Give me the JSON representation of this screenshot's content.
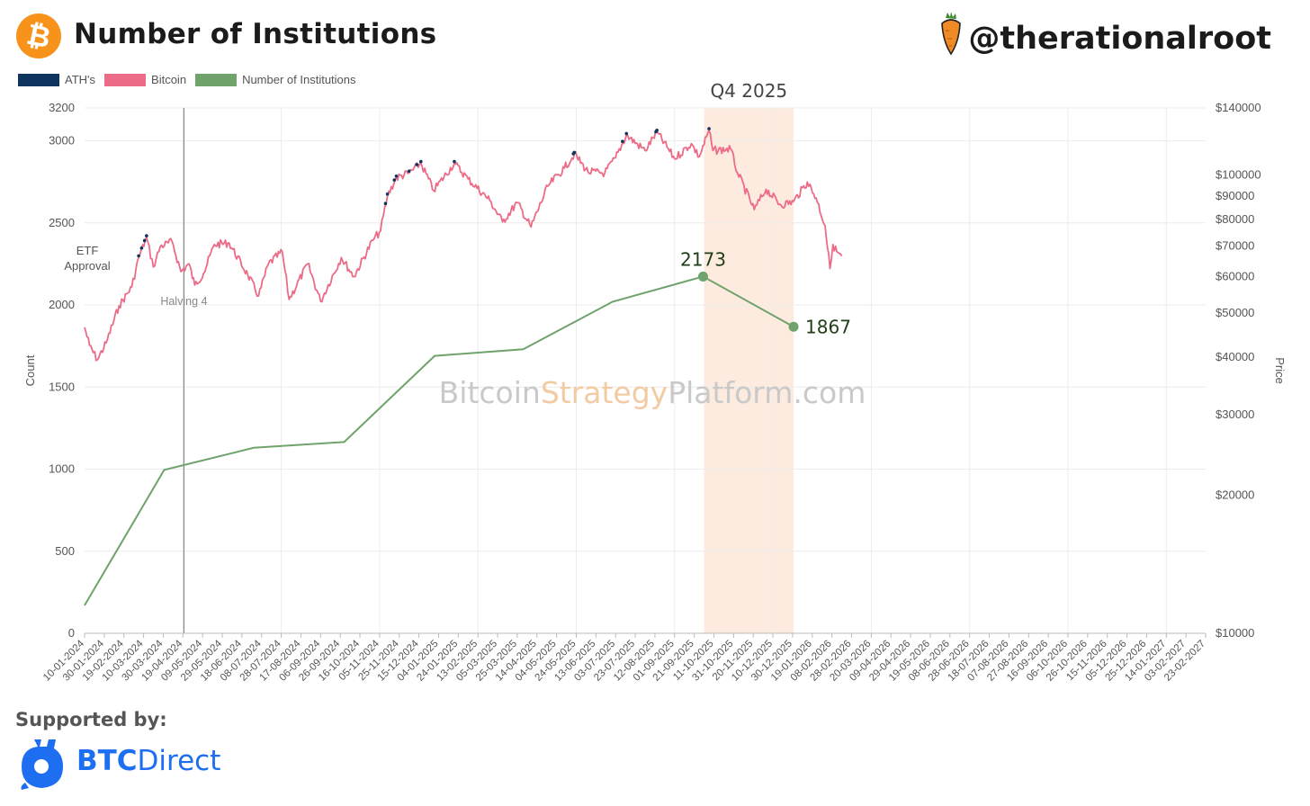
{
  "header": {
    "logo_glyph": "₿",
    "title": "Number of Institutions",
    "handle": "@therationalroot",
    "handle_icon": "carrot-icon"
  },
  "legend": [
    {
      "label": "ATH's",
      "color": "#0f3460"
    },
    {
      "label": "Bitcoin",
      "color": "#ec6b86"
    },
    {
      "label": "Number of Institutions",
      "color": "#6fa36b"
    }
  ],
  "footer": {
    "supported_by": "Supported by:",
    "sponsor_part1": "BTC",
    "sponsor_part2": "Direct",
    "sponsor_icon": "btcdirect-logo-icon"
  },
  "watermark": {
    "part1": "Bitcoin",
    "part2": "Strategy",
    "part3": "Platform.com"
  },
  "chart_data": {
    "type": "line",
    "title": "Number of Institutions",
    "y_left_label": "Count",
    "y_right_label": "Price",
    "y_left_range": [
      0,
      3200
    ],
    "y_left_ticks": [
      0,
      500,
      1000,
      1500,
      2000,
      2500,
      3000,
      3200
    ],
    "y_right_scale": "log",
    "y_right_range": [
      10000,
      140000
    ],
    "y_right_ticks": [
      {
        "value": 10000,
        "label": "$10000"
      },
      {
        "value": 20000,
        "label": "$20000"
      },
      {
        "value": 30000,
        "label": "$30000"
      },
      {
        "value": 40000,
        "label": "$40000"
      },
      {
        "value": 50000,
        "label": "$50000"
      },
      {
        "value": 60000,
        "label": "$60000"
      },
      {
        "value": 70000,
        "label": "$70000"
      },
      {
        "value": 80000,
        "label": "$80000"
      },
      {
        "value": 90000,
        "label": "$90000"
      },
      {
        "value": 100000,
        "label": "$100000"
      },
      {
        "value": 140000,
        "label": "$140000"
      }
    ],
    "x_start": "2024-01-10",
    "x_end": "2027-02-23",
    "x_tick_labels": [
      "10-01-2024",
      "30-01-2024",
      "19-02-2024",
      "10-03-2024",
      "30-03-2024",
      "19-04-2024",
      "09-05-2024",
      "29-05-2024",
      "18-06-2024",
      "08-07-2024",
      "28-07-2024",
      "17-08-2024",
      "06-09-2024",
      "26-09-2024",
      "16-10-2024",
      "05-11-2024",
      "25-11-2024",
      "15-12-2024",
      "04-01-2025",
      "24-01-2025",
      "13-02-2025",
      "05-03-2025",
      "25-03-2025",
      "14-04-2025",
      "04-05-2025",
      "24-05-2025",
      "13-06-2025",
      "03-07-2025",
      "23-07-2025",
      "12-08-2025",
      "01-09-2025",
      "21-09-2025",
      "11-10-2025",
      "31-10-2025",
      "20-11-2025",
      "10-12-2025",
      "30-12-2025",
      "19-01-2026",
      "08-02-2026",
      "28-02-2026",
      "20-03-2026",
      "09-04-2026",
      "29-04-2026",
      "19-05-2026",
      "08-06-2026",
      "28-06-2026",
      "18-07-2026",
      "07-08-2026",
      "27-08-2026",
      "16-09-2026",
      "06-10-2026",
      "26-10-2026",
      "15-11-2026",
      "05-12-2026",
      "25-12-2026",
      "14-01-2027",
      "03-02-2027",
      "23-02-2027"
    ],
    "institutions": [
      {
        "date": "2024-01-10",
        "value": 170
      },
      {
        "date": "2024-03-31",
        "value": 995
      },
      {
        "date": "2024-06-30",
        "value": 1130
      },
      {
        "date": "2024-09-30",
        "value": 1165
      },
      {
        "date": "2024-12-31",
        "value": 1690
      },
      {
        "date": "2025-03-31",
        "value": 1730
      },
      {
        "date": "2025-06-30",
        "value": 2020
      },
      {
        "date": "2025-09-30",
        "value": 2173
      },
      {
        "date": "2025-12-31",
        "value": 1867
      }
    ],
    "institution_labels": [
      {
        "date": "2025-09-30",
        "value": 2173,
        "label": "2173"
      },
      {
        "date": "2025-12-31",
        "value": 1867,
        "label": "1867"
      }
    ],
    "bitcoin_price": [
      {
        "date": "2024-01-10",
        "value": 46500
      },
      {
        "date": "2024-01-15",
        "value": 42500
      },
      {
        "date": "2024-01-23",
        "value": 39500
      },
      {
        "date": "2024-02-01",
        "value": 43000
      },
      {
        "date": "2024-02-14",
        "value": 51800
      },
      {
        "date": "2024-02-27",
        "value": 57000
      },
      {
        "date": "2024-03-05",
        "value": 66000
      },
      {
        "date": "2024-03-13",
        "value": 73000
      },
      {
        "date": "2024-03-20",
        "value": 63000
      },
      {
        "date": "2024-03-27",
        "value": 69800
      },
      {
        "date": "2024-04-08",
        "value": 71500
      },
      {
        "date": "2024-04-17",
        "value": 61500
      },
      {
        "date": "2024-04-25",
        "value": 64000
      },
      {
        "date": "2024-05-01",
        "value": 57500
      },
      {
        "date": "2024-05-10",
        "value": 61000
      },
      {
        "date": "2024-05-21",
        "value": 70500
      },
      {
        "date": "2024-06-05",
        "value": 71000
      },
      {
        "date": "2024-06-24",
        "value": 60500
      },
      {
        "date": "2024-07-05",
        "value": 54500
      },
      {
        "date": "2024-07-15",
        "value": 64000
      },
      {
        "date": "2024-07-29",
        "value": 68000
      },
      {
        "date": "2024-08-05",
        "value": 53500
      },
      {
        "date": "2024-08-24",
        "value": 64000
      },
      {
        "date": "2024-09-06",
        "value": 53000
      },
      {
        "date": "2024-09-27",
        "value": 66000
      },
      {
        "date": "2024-10-10",
        "value": 60000
      },
      {
        "date": "2024-10-29",
        "value": 72000
      },
      {
        "date": "2024-11-06",
        "value": 75500
      },
      {
        "date": "2024-11-13",
        "value": 90000
      },
      {
        "date": "2024-11-22",
        "value": 98500
      },
      {
        "date": "2024-12-05",
        "value": 101000
      },
      {
        "date": "2024-12-17",
        "value": 106000
      },
      {
        "date": "2024-12-30",
        "value": 92500
      },
      {
        "date": "2025-01-20",
        "value": 106000
      },
      {
        "date": "2025-02-03",
        "value": 98000
      },
      {
        "date": "2025-02-25",
        "value": 88000
      },
      {
        "date": "2025-03-10",
        "value": 79000
      },
      {
        "date": "2025-03-25",
        "value": 87000
      },
      {
        "date": "2025-04-08",
        "value": 77000
      },
      {
        "date": "2025-04-25",
        "value": 94500
      },
      {
        "date": "2025-05-12",
        "value": 103500
      },
      {
        "date": "2025-05-22",
        "value": 111000
      },
      {
        "date": "2025-06-05",
        "value": 101500
      },
      {
        "date": "2025-06-22",
        "value": 101000
      },
      {
        "date": "2025-07-03",
        "value": 109000
      },
      {
        "date": "2025-07-14",
        "value": 122000
      },
      {
        "date": "2025-08-02",
        "value": 113000
      },
      {
        "date": "2025-08-14",
        "value": 124000
      },
      {
        "date": "2025-09-01",
        "value": 108500
      },
      {
        "date": "2025-09-18",
        "value": 117000
      },
      {
        "date": "2025-09-26",
        "value": 109500
      },
      {
        "date": "2025-10-06",
        "value": 125000
      },
      {
        "date": "2025-10-10",
        "value": 113000
      },
      {
        "date": "2025-10-28",
        "value": 114000
      },
      {
        "date": "2025-11-04",
        "value": 101000
      },
      {
        "date": "2025-11-21",
        "value": 84000
      },
      {
        "date": "2025-12-03",
        "value": 93000
      },
      {
        "date": "2025-12-18",
        "value": 86000
      },
      {
        "date": "2025-12-31",
        "value": 87500
      },
      {
        "date": "2026-01-14",
        "value": 96500
      },
      {
        "date": "2026-01-23",
        "value": 89000
      },
      {
        "date": "2026-02-01",
        "value": 77500
      },
      {
        "date": "2026-02-06",
        "value": 62500
      },
      {
        "date": "2026-02-09",
        "value": 70500
      },
      {
        "date": "2026-02-13",
        "value": 68000
      },
      {
        "date": "2026-02-18",
        "value": 66500
      }
    ],
    "ath_dates": [
      "2024-03-05",
      "2024-03-08",
      "2024-03-11",
      "2024-03-13",
      "2024-11-11",
      "2024-11-13",
      "2024-11-20",
      "2024-11-22",
      "2024-12-05",
      "2024-12-13",
      "2024-12-17",
      "2025-01-20",
      "2025-05-21",
      "2025-05-22",
      "2025-07-10",
      "2025-07-14",
      "2025-08-13",
      "2025-08-14",
      "2025-10-06"
    ],
    "annotations": [
      {
        "text": "ETF",
        "date": "2024-01-10"
      },
      {
        "text": "Approval",
        "date": "2024-01-10"
      },
      {
        "text": "Halving 4",
        "date": "2024-04-20"
      },
      {
        "text": "Q4 2025",
        "date": "2025-11-15"
      }
    ],
    "shaded_range": {
      "label": "Q4 2025",
      "start": "2025-10-01",
      "end": "2025-12-31"
    },
    "vertical_lines": [
      {
        "date": "2024-04-20",
        "label": "Halving 4"
      }
    ],
    "grid": true
  }
}
